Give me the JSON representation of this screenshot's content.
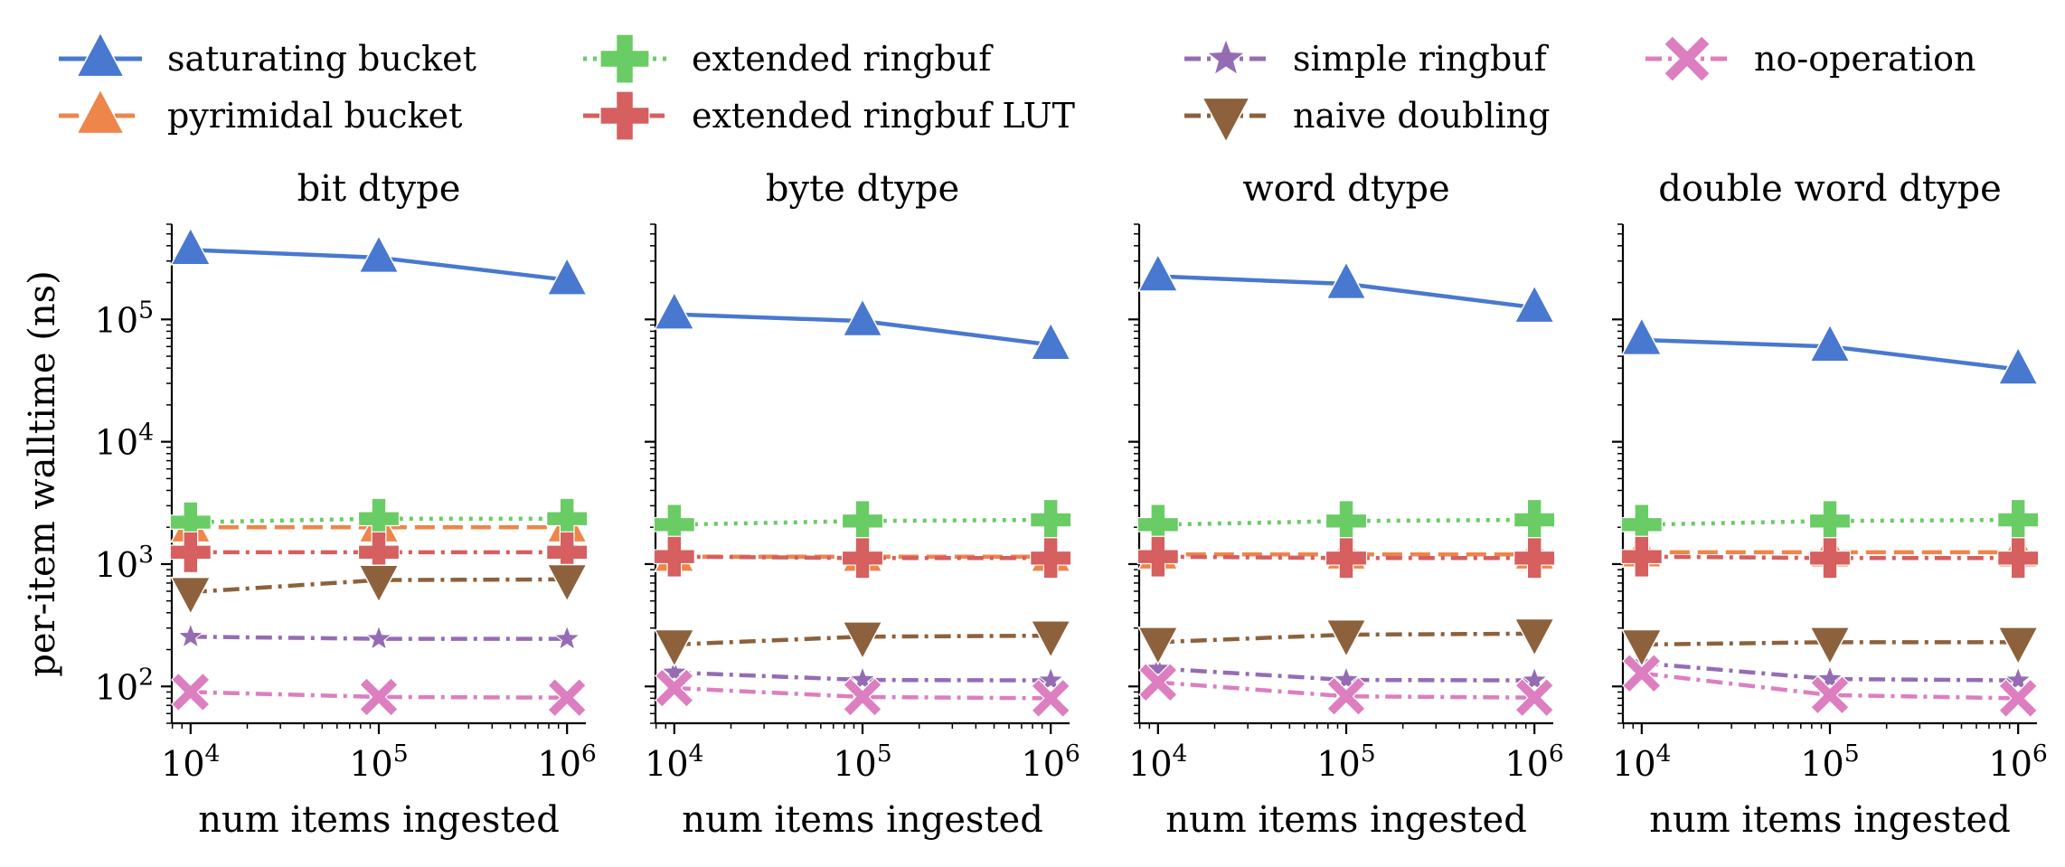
{
  "legend": {
    "placement": "top",
    "entries": [
      {
        "name": "saturating bucket",
        "color": "#4878d0",
        "marker": "triangle-up",
        "dash": "solid"
      },
      {
        "name": "pyrimidal bucket",
        "color": "#ee854a",
        "marker": "triangle-up",
        "dash": "dashed"
      },
      {
        "name": "extended ringbuf",
        "color": "#6acc64",
        "marker": "plus",
        "dash": "dotted"
      },
      {
        "name": "extended ringbuf LUT",
        "color": "#d65f5f",
        "marker": "plus",
        "dash": "dashdot"
      },
      {
        "name": "simple ringbuf",
        "color": "#956cb4",
        "marker": "star",
        "dash": "dashdot"
      },
      {
        "name": "naive doubling",
        "color": "#8c613c",
        "marker": "triangle-down",
        "dash": "dashdot"
      },
      {
        "name": "no-operation",
        "color": "#dc7ec0",
        "marker": "x",
        "dash": "dashdot"
      }
    ]
  },
  "chart_data": [
    {
      "type": "line",
      "title": "bit dtype",
      "xlabel": "num items ingested",
      "ylabel": "per-item walltime (ns)",
      "xscale": "log",
      "yscale": "log",
      "xlim": [
        7943,
        1258925
      ],
      "ylim": [
        50,
        600000
      ],
      "xticks": [
        10000,
        100000,
        1000000
      ],
      "xtick_labels": [
        "10^4",
        "10^5",
        "10^6"
      ],
      "yticks": [
        100,
        1000,
        10000,
        100000
      ],
      "ytick_labels": [
        "10^2",
        "10^3",
        "10^4",
        "10^5"
      ],
      "x": [
        10000,
        100000,
        1000000
      ],
      "series": [
        {
          "name": "saturating bucket",
          "values": [
            370000,
            320000,
            210000
          ]
        },
        {
          "name": "pyrimidal bucket",
          "values": [
            2000,
            2000,
            2000
          ]
        },
        {
          "name": "extended ringbuf",
          "values": [
            2200,
            2350,
            2350
          ]
        },
        {
          "name": "extended ringbuf LUT",
          "values": [
            1250,
            1250,
            1250
          ]
        },
        {
          "name": "simple ringbuf",
          "values": [
            255,
            245,
            245
          ]
        },
        {
          "name": "naive doubling",
          "values": [
            590,
            740,
            750
          ]
        },
        {
          "name": "no-operation",
          "values": [
            90,
            82,
            81
          ]
        }
      ]
    },
    {
      "type": "line",
      "title": "byte dtype",
      "xlabel": "num items ingested",
      "ylabel": "",
      "xscale": "log",
      "yscale": "log",
      "xlim": [
        7943,
        1258925
      ],
      "ylim": [
        50,
        600000
      ],
      "xticks": [
        10000,
        100000,
        1000000
      ],
      "xtick_labels": [
        "10^4",
        "10^5",
        "10^6"
      ],
      "x": [
        10000,
        100000,
        1000000
      ],
      "series": [
        {
          "name": "saturating bucket",
          "values": [
            110000,
            97000,
            62000
          ]
        },
        {
          "name": "pyrimidal bucket",
          "values": [
            1150,
            1150,
            1150
          ]
        },
        {
          "name": "extended ringbuf",
          "values": [
            2100,
            2250,
            2300
          ]
        },
        {
          "name": "extended ringbuf LUT",
          "values": [
            1150,
            1120,
            1120
          ]
        },
        {
          "name": "simple ringbuf",
          "values": [
            130,
            113,
            112
          ]
        },
        {
          "name": "naive doubling",
          "values": [
            220,
            255,
            260
          ]
        },
        {
          "name": "no-operation",
          "values": [
            97,
            82,
            80
          ]
        }
      ]
    },
    {
      "type": "line",
      "title": "word dtype",
      "xlabel": "num items ingested",
      "ylabel": "",
      "xscale": "log",
      "yscale": "log",
      "xlim": [
        7943,
        1258925
      ],
      "ylim": [
        50,
        600000
      ],
      "xticks": [
        10000,
        100000,
        1000000
      ],
      "xtick_labels": [
        "10^4",
        "10^5",
        "10^6"
      ],
      "x": [
        10000,
        100000,
        1000000
      ],
      "series": [
        {
          "name": "saturating bucket",
          "values": [
            225000,
            195000,
            125000
          ]
        },
        {
          "name": "pyrimidal bucket",
          "values": [
            1200,
            1200,
            1200
          ]
        },
        {
          "name": "extended ringbuf",
          "values": [
            2100,
            2250,
            2300
          ]
        },
        {
          "name": "extended ringbuf LUT",
          "values": [
            1150,
            1120,
            1120
          ]
        },
        {
          "name": "simple ringbuf",
          "values": [
            140,
            113,
            112
          ]
        },
        {
          "name": "naive doubling",
          "values": [
            230,
            265,
            270
          ]
        },
        {
          "name": "no-operation",
          "values": [
            108,
            83,
            81
          ]
        }
      ]
    },
    {
      "type": "line",
      "title": "double word dtype",
      "xlabel": "num items ingested",
      "ylabel": "",
      "xscale": "log",
      "yscale": "log",
      "xlim": [
        7943,
        1258925
      ],
      "ylim": [
        50,
        600000
      ],
      "xticks": [
        10000,
        100000,
        1000000
      ],
      "xtick_labels": [
        "10^4",
        "10^5",
        "10^6"
      ],
      "x": [
        10000,
        100000,
        1000000
      ],
      "series": [
        {
          "name": "saturating bucket",
          "values": [
            68000,
            60000,
            39000
          ]
        },
        {
          "name": "pyrimidal bucket",
          "values": [
            1250,
            1250,
            1250
          ]
        },
        {
          "name": "extended ringbuf",
          "values": [
            2100,
            2250,
            2300
          ]
        },
        {
          "name": "extended ringbuf LUT",
          "values": [
            1150,
            1120,
            1120
          ]
        },
        {
          "name": "simple ringbuf",
          "values": [
            155,
            115,
            112
          ]
        },
        {
          "name": "naive doubling",
          "values": [
            220,
            230,
            230
          ]
        },
        {
          "name": "no-operation",
          "values": [
            128,
            85,
            80
          ]
        }
      ]
    }
  ]
}
